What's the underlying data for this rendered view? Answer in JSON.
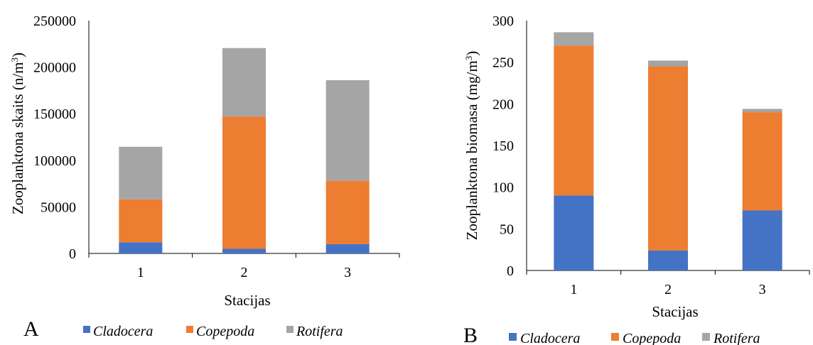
{
  "series_colors": {
    "Cladocera": "#4472C4",
    "Copepoda": "#ED7D31",
    "Rotifera": "#A5A5A5"
  },
  "chart_data": [
    {
      "type": "bar",
      "stacked": true,
      "panel_label": "A",
      "categories": [
        "1",
        "2",
        "3"
      ],
      "series": [
        {
          "name": "Cladocera",
          "values": [
            12000,
            5000,
            10000
          ]
        },
        {
          "name": "Copepoda",
          "values": [
            46000,
            142000,
            68000
          ]
        },
        {
          "name": "Rotifera",
          "values": [
            56500,
            73500,
            108000
          ]
        }
      ],
      "xlabel": "Stacijas",
      "ylabel": "Zooplanktona skaits  (n/m",
      "ylabel_sup": "3",
      "ylabel_end": ")",
      "ylim": [
        0,
        250000
      ],
      "yticks": [
        "0",
        "50000",
        "100000",
        "150000",
        "200000",
        "250000"
      ],
      "legend": [
        "Cladocera",
        "Copepoda",
        "Rotifera"
      ],
      "legend_position": "bottom",
      "grid": false
    },
    {
      "type": "bar",
      "stacked": true,
      "panel_label": "B",
      "categories": [
        "1",
        "2",
        "3"
      ],
      "series": [
        {
          "name": "Cladocera",
          "values": [
            90,
            24,
            72
          ]
        },
        {
          "name": "Copepoda",
          "values": [
            180,
            221,
            118
          ]
        },
        {
          "name": "Rotifera",
          "values": [
            16,
            7,
            4
          ]
        }
      ],
      "xlabel": "Stacijas",
      "ylabel": "Zooplanktona biomasa (mg/m",
      "ylabel_sup": "3",
      "ylabel_end": ")",
      "ylim": [
        0,
        300
      ],
      "yticks": [
        "0",
        "50",
        "100",
        "150",
        "200",
        "250",
        "300"
      ],
      "legend": [
        "Cladocera",
        "Copepoda",
        "Rotifera"
      ],
      "legend_position": "bottom",
      "grid": false
    }
  ]
}
